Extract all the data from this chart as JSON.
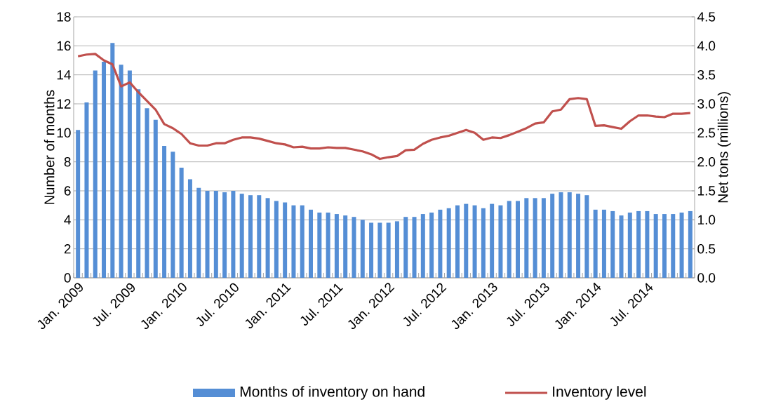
{
  "chart_data": {
    "type": "bar",
    "categories": [
      "Jan. 2009",
      null,
      null,
      null,
      null,
      null,
      "Jul. 2009",
      null,
      null,
      null,
      null,
      null,
      "Jan. 2010",
      null,
      null,
      null,
      null,
      null,
      "Jul. 2010",
      null,
      null,
      null,
      null,
      null,
      "Jan. 2011",
      null,
      null,
      null,
      null,
      null,
      "Jul. 2011",
      null,
      null,
      null,
      null,
      null,
      "Jan. 2012",
      null,
      null,
      null,
      null,
      null,
      "Jul. 2012",
      null,
      null,
      null,
      null,
      null,
      "Jan. 2013",
      null,
      null,
      null,
      null,
      null,
      "Jul. 2013",
      null,
      null,
      null,
      null,
      null,
      "Jan. 2014",
      null,
      null,
      null,
      null,
      null,
      "Jul. 2014",
      null,
      null,
      null,
      null,
      null
    ],
    "series": [
      {
        "name": "Months of inventory on hand",
        "color": "#558ed5",
        "values": [
          10.2,
          12.1,
          14.3,
          14.9,
          16.2,
          14.7,
          14.3,
          13.0,
          11.7,
          10.9,
          9.1,
          8.7,
          7.6,
          6.8,
          6.2,
          6.0,
          6.0,
          5.9,
          6.0,
          5.8,
          5.7,
          5.7,
          5.5,
          5.3,
          5.2,
          5.0,
          5.0,
          4.7,
          4.5,
          4.5,
          4.4,
          4.3,
          4.2,
          4.0,
          3.8,
          3.8,
          3.8,
          3.9,
          4.2,
          4.2,
          4.4,
          4.5,
          4.7,
          4.8,
          5.0,
          5.1,
          5.0,
          4.8,
          5.1,
          5.0,
          5.3,
          5.3,
          5.5,
          5.5,
          5.5,
          5.8,
          5.9,
          5.9,
          5.8,
          5.7,
          4.7,
          4.7,
          4.6,
          4.3,
          4.5,
          4.6,
          4.6,
          4.4,
          4.4,
          4.4,
          4.5,
          4.6
        ]
      },
      {
        "name": "Inventory level",
        "type": "line",
        "axis": "y2",
        "color": "#c0504d",
        "values": [
          3.82,
          3.85,
          3.86,
          3.75,
          3.68,
          3.3,
          3.37,
          3.2,
          3.05,
          2.9,
          2.65,
          2.58,
          2.48,
          2.32,
          2.28,
          2.28,
          2.32,
          2.32,
          2.38,
          2.42,
          2.42,
          2.4,
          2.36,
          2.32,
          2.3,
          2.25,
          2.26,
          2.23,
          2.23,
          2.25,
          2.24,
          2.24,
          2.21,
          2.18,
          2.13,
          2.05,
          2.08,
          2.1,
          2.2,
          2.21,
          2.31,
          2.38,
          2.42,
          2.45,
          2.5,
          2.55,
          2.5,
          2.38,
          2.42,
          2.41,
          2.46,
          2.52,
          2.58,
          2.66,
          2.68,
          2.87,
          2.9,
          3.08,
          3.1,
          3.08,
          2.62,
          2.63,
          2.6,
          2.57,
          2.7,
          2.8,
          2.8,
          2.78,
          2.77,
          2.83,
          2.83,
          2.84
        ]
      }
    ],
    "ylabel": "Number of months",
    "y2label": "Net tons (millions)",
    "ylim": [
      0,
      18
    ],
    "yticks": [
      0,
      2,
      4,
      6,
      8,
      10,
      12,
      14,
      16,
      18
    ],
    "y2lim": [
      0,
      4.5
    ],
    "y2ticks": [
      {
        "value": 0,
        "label": "0.0"
      },
      {
        "value": 0.5,
        "label": "0.5"
      },
      {
        "value": 1,
        "label": "1.0"
      },
      {
        "value": 1.5,
        "label": "1.5"
      },
      {
        "value": 2,
        "label": "2.0"
      },
      {
        "value": 2.5,
        "label": "2.5"
      },
      {
        "value": 3,
        "label": "3.0"
      },
      {
        "value": 3.5,
        "label": "3.5"
      },
      {
        "value": 4,
        "label": "4.0"
      },
      {
        "value": 4.5,
        "label": "4.5"
      }
    ],
    "grid": "y",
    "legend": "bottom"
  }
}
